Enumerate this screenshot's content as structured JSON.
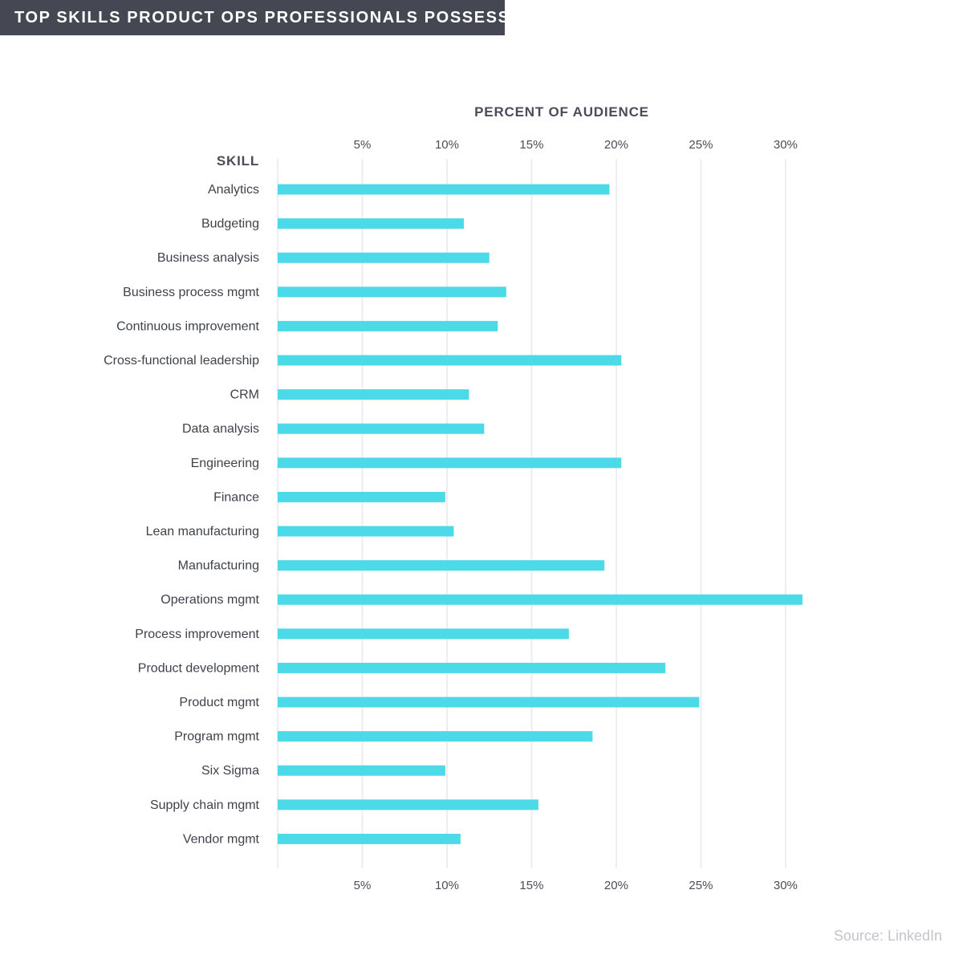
{
  "header": {
    "title": "TOP SKILLS PRODUCT OPS PROFESSIONALS POSSESS"
  },
  "footer": {
    "source": "Source: LinkedIn"
  },
  "colors": {
    "bar": "#4cd9e8",
    "grid": "#eceef1",
    "banner": "#454852",
    "text": "#3f424b"
  },
  "chart_data": {
    "type": "bar",
    "orientation": "horizontal",
    "xlabel": "PERCENT OF AUDIENCE",
    "ylabel": "SKILL",
    "xlim": [
      0,
      31
    ],
    "ticks": [
      5,
      10,
      15,
      20,
      25,
      30
    ],
    "tick_labels": [
      "5%",
      "10%",
      "15%",
      "20%",
      "25%",
      "30%"
    ],
    "grid": true,
    "categories": [
      "Analytics",
      "Budgeting",
      "Business analysis",
      "Business process mgmt",
      "Continuous improvement",
      "Cross-functional leadership",
      "CRM",
      "Data analysis",
      "Engineering",
      "Finance",
      "Lean manufacturing",
      "Manufacturing",
      "Operations mgmt",
      "Process improvement",
      "Product development",
      "Product mgmt",
      "Program mgmt",
      "Six Sigma",
      "Supply chain mgmt",
      "Vendor mgmt"
    ],
    "values": [
      19.6,
      11.0,
      12.5,
      13.5,
      13.0,
      20.3,
      11.3,
      12.2,
      20.3,
      9.9,
      10.4,
      19.3,
      31.0,
      17.2,
      22.9,
      24.9,
      18.6,
      9.9,
      15.4,
      10.8
    ]
  }
}
